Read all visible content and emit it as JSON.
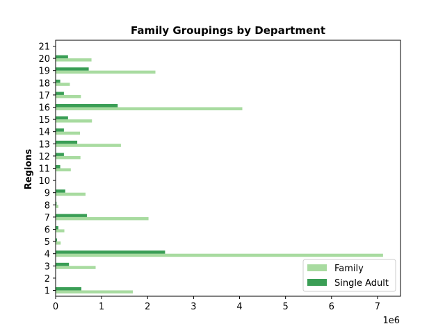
{
  "chart_data": {
    "type": "bar",
    "orientation": "horizontal",
    "title": "Family Groupings by Department",
    "xlabel": "",
    "ylabel": "Regions",
    "x_offset_text": "1e6",
    "xlim": [
      0,
      7500000
    ],
    "xticks": [
      0,
      1000000,
      2000000,
      3000000,
      4000000,
      5000000,
      6000000,
      7000000
    ],
    "xtick_labels": [
      "0",
      "1",
      "2",
      "3",
      "4",
      "5",
      "6",
      "7"
    ],
    "categories": [
      "1",
      "2",
      "3",
      "4",
      "5",
      "6",
      "7",
      "8",
      "9",
      "10",
      "11",
      "12",
      "13",
      "14",
      "15",
      "16",
      "17",
      "18",
      "19",
      "20",
      "21"
    ],
    "grid": false,
    "legend_position": "lower-right",
    "series": [
      {
        "name": "Family",
        "color": "#a8dba0",
        "values": [
          1680000,
          0,
          870000,
          7120000,
          110000,
          190000,
          2020000,
          60000,
          650000,
          0,
          330000,
          540000,
          1420000,
          530000,
          790000,
          4060000,
          550000,
          310000,
          2170000,
          780000,
          0
        ]
      },
      {
        "name": "Single Adult",
        "color": "#3a9e55",
        "values": [
          560000,
          0,
          290000,
          2380000,
          30000,
          60000,
          680000,
          20000,
          210000,
          0,
          100000,
          180000,
          470000,
          180000,
          270000,
          1350000,
          180000,
          100000,
          720000,
          270000,
          0
        ]
      }
    ]
  }
}
